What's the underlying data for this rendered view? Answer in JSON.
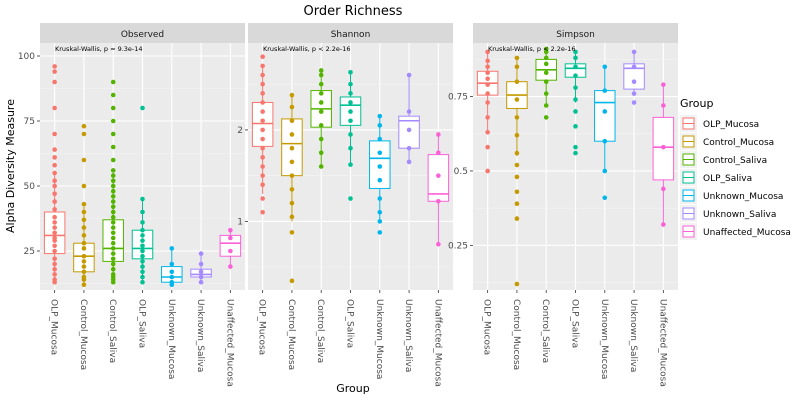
{
  "chart_data": {
    "type": "box",
    "title": "Order Richness",
    "xlabel": "Group",
    "ylabel": "Alpha Diversity Measure",
    "legend": {
      "title": "Group",
      "placement": "right",
      "entries": [
        {
          "name": "OLP_Mucosa",
          "color": "#F8766D"
        },
        {
          "name": "Control_Mucosa",
          "color": "#C49A00"
        },
        {
          "name": "Control_Saliva",
          "color": "#53B400"
        },
        {
          "name": "OLP_Saliva",
          "color": "#00C094"
        },
        {
          "name": "Unknown_Mucosa",
          "color": "#00B6EB"
        },
        {
          "name": "Unknown_Saliva",
          "color": "#A58AFF"
        },
        {
          "name": "Unaffected_Mucosa",
          "color": "#FB61D7"
        }
      ]
    },
    "categories": [
      "OLP_Mucosa",
      "Control_Mucosa",
      "Control_Saliva",
      "OLP_Saliva",
      "Unknown_Mucosa",
      "Unknown_Saliva",
      "Unaffected_Mucosa"
    ],
    "panels": [
      {
        "name": "Observed",
        "annotation": "Kruskal-Wallis, p = 9.3e-14",
        "ylim": [
          10,
          105
        ],
        "yticks": [
          25,
          50,
          75,
          100
        ],
        "boxes": [
          {
            "min": 13,
            "q1": 24,
            "median": 31,
            "q3": 40,
            "max": 55
          },
          {
            "min": 12,
            "q1": 17,
            "median": 23,
            "q3": 28,
            "max": 42
          },
          {
            "min": 13,
            "q1": 21,
            "median": 26,
            "q3": 37,
            "max": 55
          },
          {
            "min": 13,
            "q1": 22,
            "median": 26,
            "q3": 33,
            "max": 45
          },
          {
            "min": 12,
            "q1": 13,
            "median": 15,
            "q3": 19,
            "max": 26
          },
          {
            "min": 13,
            "q1": 15,
            "median": 16,
            "q3": 18,
            "max": 24
          },
          {
            "min": 19,
            "q1": 23,
            "median": 28,
            "q3": 31,
            "max": 33
          }
        ],
        "points": [
          [
            13,
            14,
            16,
            18,
            20,
            22,
            25,
            27,
            29,
            30,
            32,
            34,
            36,
            38,
            41,
            44,
            47,
            50,
            52,
            55,
            58,
            61,
            64,
            70,
            80,
            90,
            94,
            96
          ],
          [
            12,
            14,
            15,
            17,
            19,
            21,
            23,
            26,
            28,
            31,
            34,
            37,
            40,
            43,
            50,
            60,
            70,
            73
          ],
          [
            13,
            14,
            15,
            16,
            18,
            20,
            22,
            24,
            26,
            28,
            30,
            32,
            34,
            36,
            38,
            40,
            42,
            44,
            46,
            48,
            50,
            52,
            54,
            56,
            60,
            65,
            70,
            75,
            80,
            85,
            90
          ],
          [
            13,
            15,
            17,
            19,
            21,
            23,
            25,
            27,
            29,
            31,
            33,
            36,
            40,
            45,
            80
          ],
          [
            12,
            13,
            15,
            17,
            20,
            26
          ],
          [
            13,
            15,
            17,
            20,
            24
          ],
          [
            19,
            25,
            30,
            33
          ]
        ]
      },
      {
        "name": "Shannon",
        "annotation": "Kruskal-Wallis, p < 2.2e-16",
        "ylim": [
          0.25,
          2.95
        ],
        "yticks": [
          1,
          2
        ],
        "boxes": [
          {
            "min": 1.3,
            "q1": 1.82,
            "median": 2.07,
            "q3": 2.3,
            "max": 2.7
          },
          {
            "min": 1.0,
            "q1": 1.5,
            "median": 1.85,
            "q3": 2.12,
            "max": 2.38
          },
          {
            "min": 1.6,
            "q1": 2.03,
            "median": 2.23,
            "q3": 2.43,
            "max": 2.65
          },
          {
            "min": 1.62,
            "q1": 2.05,
            "median": 2.27,
            "q3": 2.36,
            "max": 2.63
          },
          {
            "min": 1.0,
            "q1": 1.36,
            "median": 1.69,
            "q3": 1.88,
            "max": 2.15
          },
          {
            "min": 1.65,
            "q1": 1.8,
            "median": 2.1,
            "q3": 2.15,
            "max": 2.6
          },
          {
            "min": 0.75,
            "q1": 1.22,
            "median": 1.3,
            "q3": 1.73,
            "max": 1.95
          }
        ],
        "points": [
          [
            1.1,
            1.25,
            1.4,
            1.5,
            1.6,
            1.7,
            1.8,
            1.9,
            2.0,
            2.1,
            2.2,
            2.3,
            2.4,
            2.5,
            2.6,
            2.7,
            2.8
          ],
          [
            0.35,
            0.88,
            1.05,
            1.2,
            1.35,
            1.5,
            1.65,
            1.8,
            1.95,
            2.1,
            2.25,
            2.38
          ],
          [
            1.6,
            1.75,
            1.9,
            2.05,
            2.2,
            2.3,
            2.4,
            2.5,
            2.6,
            2.65
          ],
          [
            1.25,
            1.62,
            1.8,
            1.95,
            2.1,
            2.2,
            2.3,
            2.4,
            2.5,
            2.63
          ],
          [
            0.88,
            1.0,
            1.1,
            1.25,
            1.45,
            1.6,
            1.75,
            1.9,
            2.05,
            2.15
          ],
          [
            1.65,
            1.8,
            2.0,
            2.2,
            2.6
          ],
          [
            0.75,
            1.22,
            1.5,
            1.75,
            1.95
          ]
        ]
      },
      {
        "name": "Simpson",
        "annotation": "Kruskal-Wallis, p < 2.2e-16",
        "ylim": [
          0.1,
          0.93
        ],
        "yticks": [
          0.25,
          0.5,
          0.75
        ],
        "boxes": [
          {
            "min": 0.63,
            "q1": 0.755,
            "median": 0.795,
            "q3": 0.835,
            "max": 0.9
          },
          {
            "min": 0.55,
            "q1": 0.71,
            "median": 0.755,
            "q3": 0.8,
            "max": 0.88
          },
          {
            "min": 0.72,
            "q1": 0.805,
            "median": 0.84,
            "q3": 0.875,
            "max": 0.91
          },
          {
            "min": 0.73,
            "q1": 0.815,
            "median": 0.845,
            "q3": 0.86,
            "max": 0.9
          },
          {
            "min": 0.5,
            "q1": 0.6,
            "median": 0.73,
            "q3": 0.77,
            "max": 0.85
          },
          {
            "min": 0.76,
            "q1": 0.775,
            "median": 0.845,
            "q3": 0.86,
            "max": 0.9
          },
          {
            "min": 0.32,
            "q1": 0.47,
            "median": 0.58,
            "q3": 0.68,
            "max": 0.79
          }
        ],
        "points": [
          [
            0.5,
            0.58,
            0.63,
            0.68,
            0.73,
            0.76,
            0.79,
            0.81,
            0.83,
            0.85,
            0.87,
            0.9
          ],
          [
            0.12,
            0.34,
            0.39,
            0.43,
            0.48,
            0.52,
            0.56,
            0.62,
            0.68,
            0.74,
            0.8,
            0.85,
            0.88
          ],
          [
            0.68,
            0.72,
            0.76,
            0.8,
            0.83,
            0.86,
            0.88,
            0.9,
            0.91
          ],
          [
            0.56,
            0.58,
            0.65,
            0.7,
            0.74,
            0.78,
            0.82,
            0.85,
            0.88,
            0.9
          ],
          [
            0.41,
            0.5,
            0.6,
            0.7,
            0.77,
            0.85
          ],
          [
            0.73,
            0.76,
            0.8,
            0.85,
            0.9
          ],
          [
            0.32,
            0.44,
            0.58,
            0.72,
            0.79
          ]
        ]
      }
    ]
  }
}
